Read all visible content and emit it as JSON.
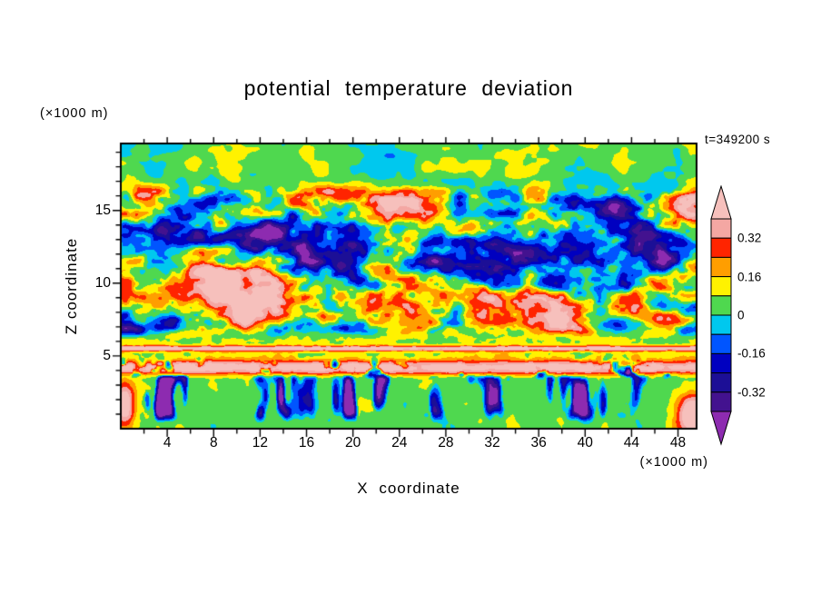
{
  "chart_data": {
    "type": "heatmap",
    "title": "potential temperature deviation",
    "xlabel": "X coordinate",
    "ylabel": "Z coordinate",
    "x_unit_label": "(×1000 m)",
    "z_unit_label": "(×1000 m)",
    "time_label": "t=349200 s",
    "x_ticks": [
      4,
      8,
      12,
      16,
      20,
      24,
      28,
      32,
      36,
      40,
      44,
      48
    ],
    "x_minor_tick_step": 2,
    "z_ticks": [
      5,
      10,
      15
    ],
    "z_minor_tick_step": 1,
    "x_range": [
      0,
      49.6
    ],
    "z_range": [
      0,
      19.6
    ],
    "colorbar": {
      "tick_labels": [
        "0.32",
        "0.16",
        "0",
        "-0.16",
        "-0.32"
      ],
      "levels_desc": [
        0.4,
        0.32,
        0.24,
        0.16,
        0.08,
        0,
        -0.08,
        -0.16,
        -0.24,
        -0.32,
        -0.4
      ],
      "box_colors_top_to_bottom": [
        "#f4a7a3",
        "#ff2400",
        "#ff9e00",
        "#fff200",
        "#4fd84f",
        "#00c8ee",
        "#0055ff",
        "#0000c0",
        "#1c0f96",
        "#43128f"
      ],
      "arrow_top_color": "#f6c0bc",
      "arrow_bottom_color": "#8d2bb0"
    },
    "field_structure": {
      "description": "Vertical x-z cross-section of potential temperature deviation from a cloud-resolving simulation at t=349200 s; strongly turbulent interior with warm (salmon/red) and cold (navy/purple) anomalies",
      "regions": [
        {
          "z_km": [
            17,
            19.6
          ],
          "character": "quiet near-zero green background with weak cyan and yellow patches"
        },
        {
          "z_km": [
            7,
            17
          ],
          "character": "strong turbulence, large warm anomalies > 0.4 and cold anomalies < -0.4",
          "typical_magnitude": 0.3
        },
        {
          "z_km": [
            5.3,
            5.8
          ],
          "character": "thin continuous warm stripe across full width",
          "value": 0.5
        },
        {
          "z_km": [
            3.7,
            4.7
          ],
          "character": "warm salmon band broken by cold purple gaps",
          "value": 0.36
        },
        {
          "z_km": [
            0,
            3.6
          ],
          "character": "green background with cold descending plumes (cyan/blue/purple) and a few warm plumes near x=0 and x=49",
          "plume_min": -0.55
        }
      ]
    }
  }
}
